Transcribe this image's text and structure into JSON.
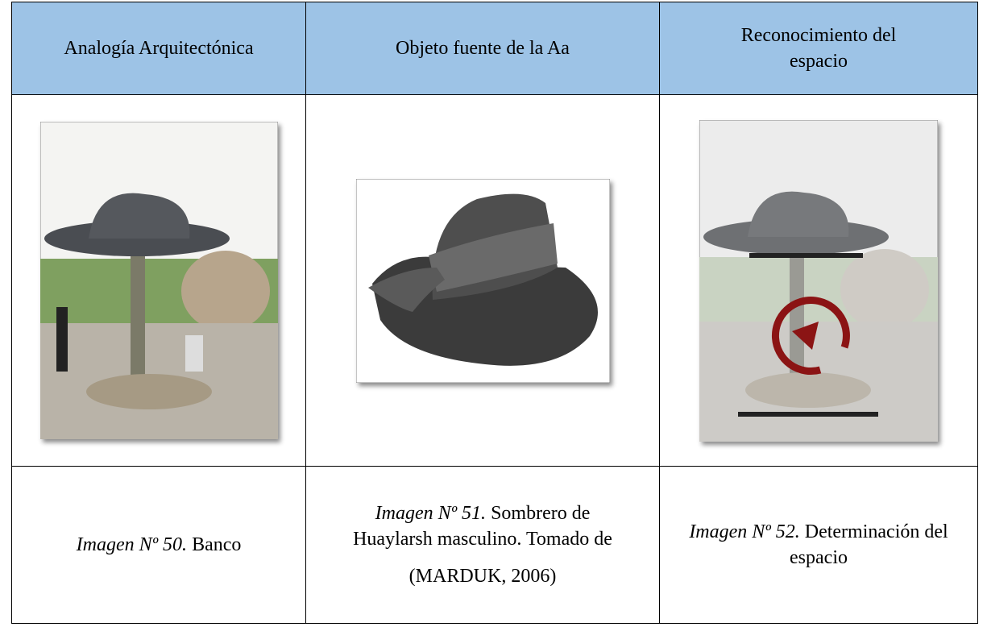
{
  "table": {
    "header": [
      "Analogía Arquitectónica",
      "Objeto fuente de la Aa",
      "Reconocimiento del espacio"
    ],
    "captions": [
      {
        "label": "Imagen Nº 50.",
        "text": "Banco"
      },
      {
        "label": "Imagen Nº 51.",
        "text": "Sombrero de Huaylarsh masculino. Tomado de",
        "source": "(MARDUK, 2006)"
      },
      {
        "label": "Imagen Nº 52.",
        "text": "Determinación del espacio"
      }
    ]
  }
}
